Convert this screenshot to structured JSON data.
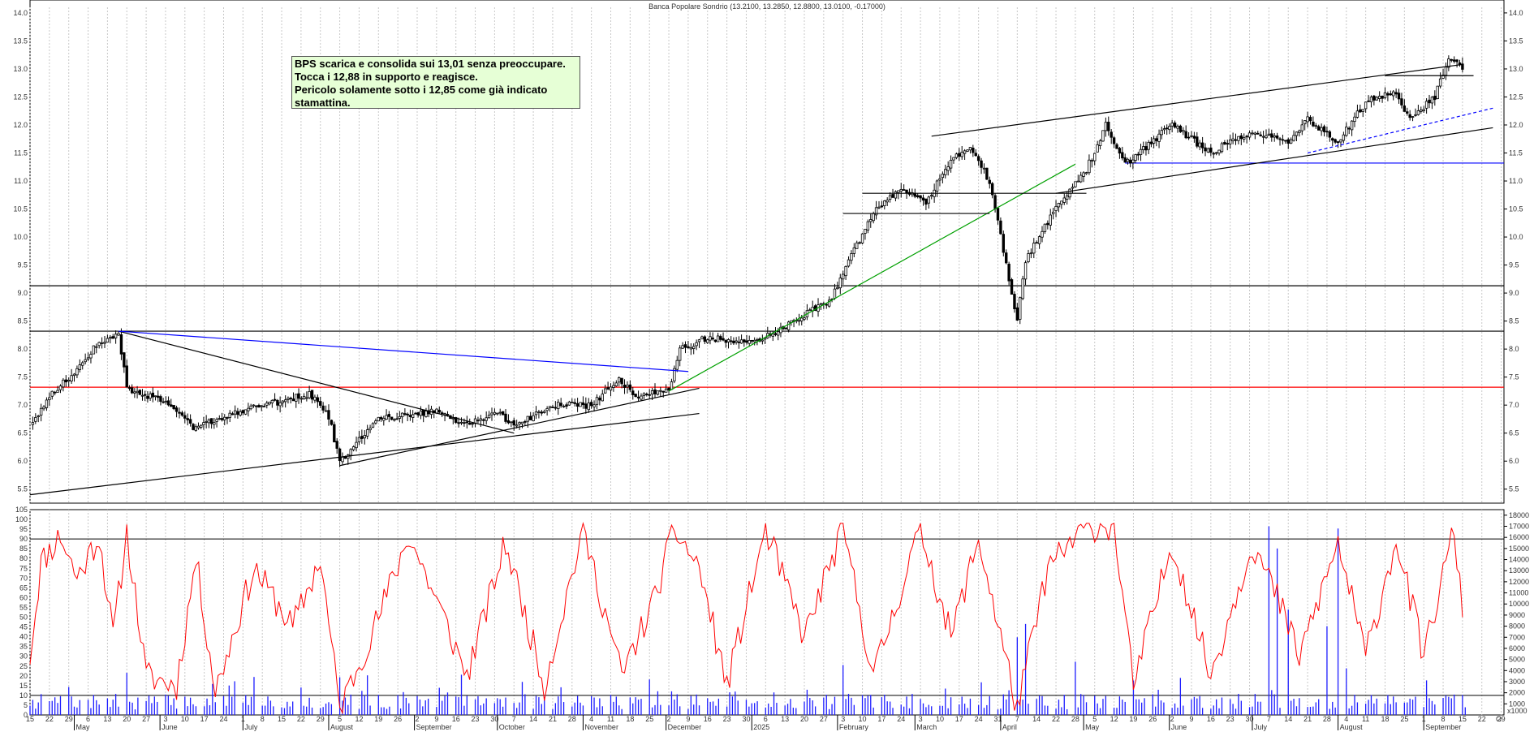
{
  "chart_data": [
    {
      "type": "candlestick",
      "title": "Banca Popolare Sondrio (13.2100, 13.2850, 12.8800, 13.0100, -0.17000)",
      "ylim": [
        5.25,
        14.1
      ],
      "y_ticks": [
        "5.5",
        "6.0",
        "6.5",
        "7.0",
        "7.5",
        "8.0",
        "8.5",
        "9.0",
        "9.5",
        "10.0",
        "10.5",
        "11.0",
        "11.5",
        "12.0",
        "12.5",
        "13.0",
        "13.5",
        "14.0"
      ],
      "x_day_ticks": [
        "15",
        "22",
        "29",
        "6",
        "13",
        "20",
        "27",
        "3",
        "10",
        "17",
        "24",
        "1",
        "8",
        "15",
        "22",
        "29",
        "5",
        "12",
        "19",
        "26",
        "2",
        "9",
        "16",
        "23",
        "30",
        "7",
        "14",
        "21",
        "28",
        "4",
        "11",
        "18",
        "25",
        "2",
        "9",
        "16",
        "23",
        "30",
        "6",
        "13",
        "20",
        "27",
        "3",
        "10",
        "17",
        "24",
        "3",
        "10",
        "17",
        "24",
        "31",
        "7",
        "14",
        "22",
        "28",
        "5",
        "12",
        "19",
        "26",
        "2",
        "9",
        "16",
        "23",
        "30",
        "7",
        "14",
        "21",
        "28",
        "4",
        "11",
        "18",
        "25",
        "1",
        "8",
        "15",
        "22",
        "29"
      ],
      "x_month_ticks": [
        "May",
        "June",
        "July",
        "August",
        "September",
        "October",
        "November",
        "December",
        "2025",
        "February",
        "March",
        "April",
        "May",
        "June",
        "July",
        "August",
        "September"
      ],
      "x_end_label": "O",
      "grid": true,
      "annotation": [
        "BPS scarica e consolida sui 13,01 senza preoccupare.",
        "Tocca i 12,88 in supporto e reagisce.",
        "Pericolo solamente sotto i 12,85 come già indicato",
        "stamattina."
      ],
      "horizontal_levels": [
        {
          "value": 9.13,
          "color": "#000000"
        },
        {
          "value": 8.32,
          "color": "#000000"
        },
        {
          "value": 7.32,
          "color": "#ff0000"
        },
        {
          "value": 11.32,
          "color": "#0000ff"
        }
      ],
      "trendlines": [
        {
          "from": [
            "2024-04-15",
            5.4
          ],
          "to": [
            "2024-12-13",
            6.85
          ],
          "color": "#000000"
        },
        {
          "from": [
            "2024-08-05",
            5.92
          ],
          "to": [
            "2024-12-13",
            7.3
          ],
          "color": "#000000"
        },
        {
          "from": [
            "2024-05-17",
            8.32
          ],
          "to": [
            "2024-10-07",
            6.5
          ],
          "color": "#000000"
        },
        {
          "from": [
            "2024-05-17",
            8.32
          ],
          "to": [
            "2024-12-09",
            7.6
          ],
          "color": "#0000ff"
        },
        {
          "from": [
            "2024-12-02",
            7.25
          ],
          "to": [
            "2025-04-28",
            11.3
          ],
          "color": "#00a000"
        },
        {
          "from": [
            "2025-03-07",
            11.8
          ],
          "to": [
            "2025-09-15",
            13.08
          ],
          "color": "#000000"
        },
        {
          "from": [
            "2025-04-21",
            10.78
          ],
          "to": [
            "2025-09-26",
            11.95
          ],
          "color": "#000000"
        },
        {
          "from": [
            "2025-07-21",
            11.5
          ],
          "to": [
            "2025-09-26",
            12.3
          ],
          "color": "#0000ff",
          "dash": true
        },
        {
          "from": [
            "2025-02-10",
            10.78
          ],
          "to": [
            "2025-05-02",
            10.78
          ],
          "color": "#000000"
        },
        {
          "from": [
            "2025-02-03",
            10.42
          ],
          "to": [
            "2025-03-28",
            10.42
          ],
          "color": "#000000"
        },
        {
          "from": [
            "2025-08-18",
            12.88
          ],
          "to": [
            "2025-09-19",
            12.88
          ],
          "color": "#000000"
        }
      ],
      "price_path": [
        [
          "2024-04-15",
          6.65
        ],
        [
          "2024-04-22",
          7.15
        ],
        [
          "2024-05-01",
          7.6
        ],
        [
          "2024-05-08",
          8.0
        ],
        [
          "2024-05-14",
          8.2
        ],
        [
          "2024-05-17",
          8.3
        ],
        [
          "2024-05-20",
          7.3
        ],
        [
          "2024-06-05",
          7.0
        ],
        [
          "2024-06-13",
          6.6
        ],
        [
          "2024-07-01",
          6.9
        ],
        [
          "2024-07-25",
          7.2
        ],
        [
          "2024-08-01",
          6.8
        ],
        [
          "2024-08-05",
          6.0
        ],
        [
          "2024-08-19",
          6.75
        ],
        [
          "2024-09-10",
          6.9
        ],
        [
          "2024-09-20",
          6.65
        ],
        [
          "2024-10-01",
          6.9
        ],
        [
          "2024-10-07",
          6.6
        ],
        [
          "2024-10-21",
          7.0
        ],
        [
          "2024-11-04",
          7.0
        ],
        [
          "2024-11-14",
          7.5
        ],
        [
          "2024-11-20",
          7.1
        ],
        [
          "2024-12-02",
          7.3
        ],
        [
          "2024-12-06",
          8.0
        ],
        [
          "2024-12-16",
          8.2
        ],
        [
          "2025-01-02",
          8.1
        ],
        [
          "2025-01-20",
          8.6
        ],
        [
          "2025-01-30",
          8.9
        ],
        [
          "2025-02-05",
          9.6
        ],
        [
          "2025-02-10",
          10.0
        ],
        [
          "2025-02-14",
          10.45
        ],
        [
          "2025-02-24",
          10.9
        ],
        [
          "2025-03-05",
          10.6
        ],
        [
          "2025-03-14",
          11.4
        ],
        [
          "2025-03-21",
          11.6
        ],
        [
          "2025-03-28",
          11.0
        ],
        [
          "2025-04-03",
          9.5
        ],
        [
          "2025-04-07",
          8.5
        ],
        [
          "2025-04-10",
          9.6
        ],
        [
          "2025-04-22",
          10.6
        ],
        [
          "2025-05-02",
          11.2
        ],
        [
          "2025-05-09",
          12.0
        ],
        [
          "2025-05-16",
          11.3
        ],
        [
          "2025-06-02",
          12.0
        ],
        [
          "2025-06-16",
          11.5
        ],
        [
          "2025-07-01",
          11.9
        ],
        [
          "2025-07-15",
          11.7
        ],
        [
          "2025-07-21",
          12.1
        ],
        [
          "2025-08-01",
          11.7
        ],
        [
          "2025-08-11",
          12.4
        ],
        [
          "2025-08-21",
          12.6
        ],
        [
          "2025-08-27",
          12.1
        ],
        [
          "2025-09-05",
          12.5
        ],
        [
          "2025-09-10",
          13.2
        ],
        [
          "2025-09-15",
          13.0
        ]
      ]
    },
    {
      "type": "line+bar",
      "title": "",
      "ylim_left": [
        0,
        105
      ],
      "y_ticks_left": [
        "0",
        "5",
        "10",
        "15",
        "20",
        "25",
        "30",
        "35",
        "40",
        "45",
        "50",
        "55",
        "60",
        "65",
        "70",
        "75",
        "80",
        "85",
        "90",
        "95",
        "100",
        "105"
      ],
      "ylim_right": [
        0,
        18500
      ],
      "y_ticks_right": [
        "1000",
        "2000",
        "3000",
        "4000",
        "5000",
        "6000",
        "7000",
        "8000",
        "9000",
        "10000",
        "11000",
        "12000",
        "13000",
        "14000",
        "15000",
        "16000",
        "17000",
        "18000"
      ],
      "y_right_bottom_label": "x1000",
      "horizontal_levels": [
        90,
        10
      ],
      "series": [
        {
          "type": "line",
          "color": "#ff0000"
        },
        {
          "type": "bar",
          "color": "#0000ff"
        }
      ],
      "oscillator_path": [
        [
          "2024-04-15",
          30
        ],
        [
          "2024-04-19",
          78
        ],
        [
          "2024-04-26",
          92
        ],
        [
          "2024-05-02",
          70
        ],
        [
          "2024-05-10",
          92
        ],
        [
          "2024-05-15",
          40
        ],
        [
          "2024-05-20",
          93
        ],
        [
          "2024-05-27",
          20
        ],
        [
          "2024-06-07",
          15
        ],
        [
          "2024-06-14",
          80
        ],
        [
          "2024-06-21",
          12
        ],
        [
          "2024-07-05",
          75
        ],
        [
          "2024-07-19",
          45
        ],
        [
          "2024-07-29",
          80
        ],
        [
          "2024-08-05",
          3
        ],
        [
          "2024-08-19",
          50
        ],
        [
          "2024-08-30",
          92
        ],
        [
          "2024-09-10",
          55
        ],
        [
          "2024-09-20",
          20
        ],
        [
          "2024-10-04",
          88
        ],
        [
          "2024-10-18",
          15
        ],
        [
          "2024-11-01",
          95
        ],
        [
          "2024-11-15",
          20
        ],
        [
          "2024-11-27",
          60
        ],
        [
          "2024-12-04",
          95
        ],
        [
          "2024-12-13",
          75
        ],
        [
          "2024-12-23",
          15
        ],
        [
          "2025-01-06",
          95
        ],
        [
          "2025-01-20",
          40
        ],
        [
          "2025-02-03",
          95
        ],
        [
          "2025-02-14",
          20
        ],
        [
          "2025-03-03",
          96
        ],
        [
          "2025-03-14",
          40
        ],
        [
          "2025-03-24",
          90
        ],
        [
          "2025-04-07",
          3
        ],
        [
          "2025-04-18",
          75
        ],
        [
          "2025-05-02",
          96
        ],
        [
          "2025-05-12",
          97
        ],
        [
          "2025-05-19",
          15
        ],
        [
          "2025-06-02",
          88
        ],
        [
          "2025-06-16",
          20
        ],
        [
          "2025-07-01",
          88
        ],
        [
          "2025-07-10",
          60
        ],
        [
          "2025-07-18",
          30
        ],
        [
          "2025-08-01",
          88
        ],
        [
          "2025-08-11",
          30
        ],
        [
          "2025-08-22",
          90
        ],
        [
          "2025-09-01",
          30
        ],
        [
          "2025-09-12",
          95
        ],
        [
          "2025-09-15",
          50
        ]
      ],
      "volume_samples": [
        [
          "2024-05-20",
          3800
        ],
        [
          "2024-06-20",
          2800
        ],
        [
          "2024-08-05",
          3400
        ],
        [
          "2024-11-25",
          3200
        ],
        [
          "2025-02-03",
          4500
        ],
        [
          "2025-04-07",
          7000
        ],
        [
          "2025-04-10",
          8200
        ],
        [
          "2025-04-28",
          4800
        ],
        [
          "2025-07-07",
          17000
        ],
        [
          "2025-07-10",
          15000
        ],
        [
          "2025-07-14",
          9500
        ],
        [
          "2025-07-28",
          8000
        ],
        [
          "2025-08-01",
          16800
        ],
        [
          "2025-08-04",
          4200
        ]
      ]
    }
  ]
}
